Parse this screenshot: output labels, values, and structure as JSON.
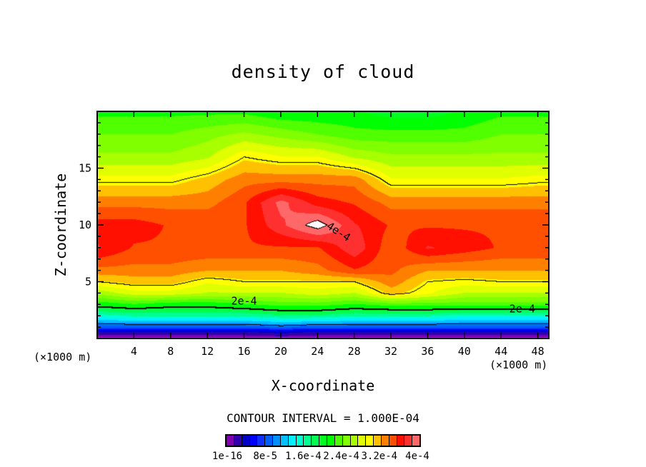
{
  "chart_data": {
    "type": "heatmap",
    "title": "density of cloud",
    "xlabel": "X-coordinate",
    "ylabel": "Z-coordinate",
    "x_unit_left": "(×1000 m)",
    "x_unit_right": "(×1000 m)",
    "xlim": [
      0,
      49.2
    ],
    "ylim": [
      0,
      20
    ],
    "xticks": [
      4,
      8,
      12,
      16,
      20,
      24,
      28,
      32,
      36,
      40,
      44,
      48
    ],
    "xtick_labels": [
      "4",
      "8",
      "12",
      "16",
      "20",
      "24",
      "28",
      "32",
      "36",
      "40",
      "44",
      "48"
    ],
    "yticks": [
      5,
      10,
      15
    ],
    "ytick_labels": [
      "5",
      "10",
      "15"
    ],
    "contour_interval_text": "CONTOUR INTERVAL = 1.000E-04",
    "value_scale": 0.0001,
    "contour_levels": [
      1,
      2,
      3,
      4
    ],
    "contour_labels": [
      {
        "text": "2e-4",
        "x": 16,
        "z": 3.3
      },
      {
        "text": "2e-4",
        "x": 46.3,
        "z": 2.6
      },
      {
        "text": "4e-4",
        "x": 26.3,
        "z": 9.4
      }
    ],
    "colorbar": {
      "min": 0,
      "max": 4,
      "colors": [
        "#8000b0",
        "#3000b0",
        "#0000c8",
        "#0000ff",
        "#1030ff",
        "#0060ff",
        "#0090ff",
        "#00c0ff",
        "#00f0ff",
        "#00ffd0",
        "#00ff90",
        "#00ff50",
        "#00ff20",
        "#00ff00",
        "#50ff00",
        "#80ff00",
        "#a8ff00",
        "#e0ff00",
        "#ffff00",
        "#ffc000",
        "#ff8000",
        "#ff5000",
        "#ff1000",
        "#ff3030",
        "#ff6868"
      ],
      "tick_labels": [
        "1e-16",
        "8e-5",
        "1.6e-4",
        "2.4e-4",
        "3.2e-4",
        "4e-4"
      ],
      "tick_values": [
        0,
        0.8,
        1.6,
        2.4,
        3.2,
        4.0
      ]
    },
    "grid": {
      "x": [
        0,
        4,
        8,
        12,
        16,
        20,
        24,
        28,
        32,
        36,
        40,
        44,
        48,
        49.2
      ],
      "z": [
        0,
        0.6,
        1,
        2,
        3,
        4,
        5,
        6,
        8,
        10,
        12,
        14,
        16,
        18,
        20
      ],
      "values_e-4": [
        [
          0,
          0,
          0,
          0,
          0,
          0,
          0,
          0,
          0,
          0,
          0,
          0,
          0,
          0
        ],
        [
          0.3,
          0.3,
          0.3,
          0.3,
          0.3,
          0.4,
          0.3,
          0.3,
          0.3,
          0.3,
          0.3,
          0.3,
          0.3,
          0.3
        ],
        [
          0.8,
          0.8,
          0.8,
          0.8,
          0.8,
          0.9,
          0.8,
          0.8,
          0.8,
          0.8,
          0.8,
          0.8,
          0.8,
          0.8
        ],
        [
          1.5,
          1.6,
          1.6,
          1.6,
          1.6,
          1.7,
          1.7,
          1.6,
          1.6,
          1.6,
          1.5,
          1.5,
          1.5,
          1.5
        ],
        [
          2.1,
          2.2,
          2.1,
          2.1,
          2.2,
          2.3,
          2.3,
          2.2,
          2.3,
          2.3,
          2.3,
          2.3,
          2.3,
          2.3
        ],
        [
          2.6,
          2.8,
          2.8,
          2.7,
          2.7,
          2.7,
          2.8,
          2.7,
          3.1,
          2.9,
          2.7,
          2.7,
          2.7,
          2.7
        ],
        [
          3.0,
          3.1,
          3.1,
          2.9,
          3.0,
          3.0,
          3.0,
          3.0,
          3.3,
          3.0,
          2.95,
          3.0,
          3.0,
          3.0
        ],
        [
          3.3,
          3.3,
          3.3,
          3.2,
          3.2,
          3.2,
          3.3,
          3.5,
          3.4,
          3.2,
          3.2,
          3.2,
          3.2,
          3.2
        ],
        [
          3.7,
          3.5,
          3.5,
          3.5,
          3.5,
          3.5,
          3.5,
          3.8,
          3.4,
          3.7,
          3.6,
          3.5,
          3.5,
          3.5
        ],
        [
          3.6,
          3.6,
          3.5,
          3.5,
          3.5,
          3.8,
          4.1,
          3.7,
          3.5,
          3.5,
          3.5,
          3.5,
          3.5,
          3.5
        ],
        [
          3.3,
          3.3,
          3.3,
          3.3,
          3.5,
          3.9,
          3.6,
          3.5,
          3.3,
          3.3,
          3.3,
          3.3,
          3.3,
          3.3
        ],
        [
          2.95,
          2.95,
          2.95,
          3.1,
          3.3,
          3.3,
          3.3,
          3.3,
          2.9,
          2.9,
          2.9,
          2.9,
          2.95,
          2.95
        ],
        [
          2.6,
          2.6,
          2.6,
          2.7,
          3.0,
          2.9,
          2.9,
          2.7,
          2.6,
          2.6,
          2.6,
          2.6,
          2.6,
          2.6
        ],
        [
          2.4,
          2.4,
          2.4,
          2.5,
          2.6,
          2.5,
          2.4,
          2.3,
          2.3,
          2.3,
          2.3,
          2.4,
          2.4,
          2.4
        ],
        [
          2.2,
          2.2,
          2.2,
          2.2,
          2.2,
          2.1,
          2.1,
          2.1,
          2.0,
          2.0,
          2.1,
          2.2,
          2.2,
          2.2
        ]
      ]
    }
  }
}
